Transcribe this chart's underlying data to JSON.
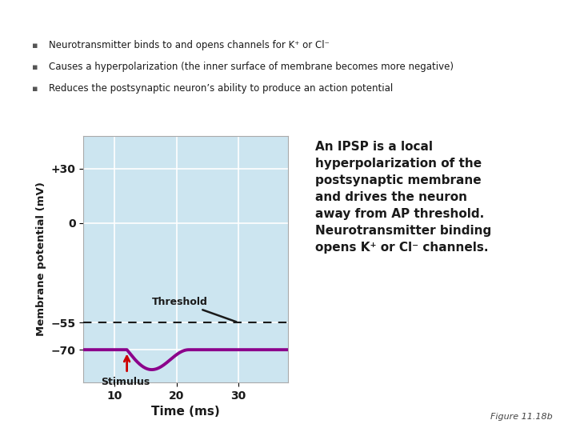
{
  "bullet_points": [
    "Neurotransmitter binds to and opens channels for K⁺ or Cl⁻",
    "Causes a hyperpolarization (the inner surface of membrane becomes more negative)",
    "Reduces the postsynaptic neuron’s ability to produce an action potential"
  ],
  "xlabel": "Time (ms)",
  "ylabel": "Membrane potential (mV)",
  "yticks": [
    30,
    0,
    -55,
    -70
  ],
  "ytick_labels": [
    "+30",
    "0",
    "−55",
    "−70"
  ],
  "xticks": [
    10,
    20,
    30
  ],
  "xlim": [
    5,
    38
  ],
  "ylim": [
    -88,
    48
  ],
  "resting_potential": -70,
  "threshold": -55,
  "stimulus_x": 12,
  "ipsp_trough": -81,
  "ipsp_trough_x": 16,
  "ipsp_recovery_x": 22,
  "plot_bg": "#cce5f0",
  "line_color": "#8b008b",
  "threshold_color": "#1a1a1a",
  "stimulus_arrow_color": "#cc0000",
  "annotation_box_color": "#ddb8dd",
  "annotation_text": "An IPSP is a local\nhyperpolarization of the\npostsynaptic membrane\nand drives the neuron\naway from AP threshold.\nNeurotransmitter binding\nopens K⁺ or Cl⁻ channels.",
  "figure_label": "Figure 11.18b",
  "grid_color": "#ffffff",
  "line_width": 2.8,
  "threshold_line_style": "--"
}
